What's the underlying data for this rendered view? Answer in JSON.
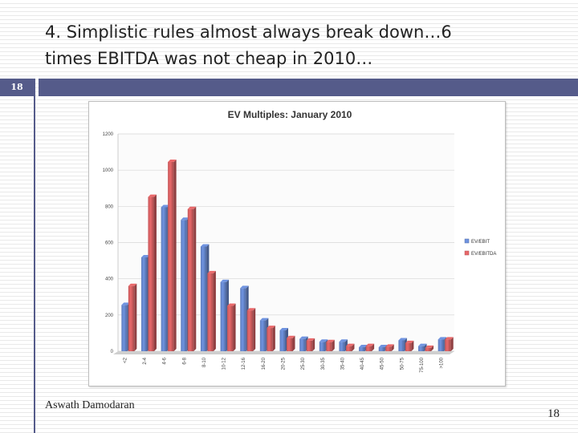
{
  "slide": {
    "title_line1": "4. Simplistic rules almost always break down…6",
    "title_line2": "times EBITDA was not cheap in 2010…",
    "slide_number_badge": "18",
    "page_number": "18",
    "author": "Aswath Damodaran",
    "accent_color": "#555b8a"
  },
  "chart_data": {
    "type": "bar",
    "title": "EV Multiples: January 2010",
    "xlabel": "",
    "ylabel": "",
    "ylim": [
      0,
      1200
    ],
    "yticks": [
      0,
      200,
      400,
      600,
      800,
      1000,
      1200
    ],
    "grid": true,
    "legend_position": "right",
    "categories": [
      "<2",
      "2-4",
      "4-6",
      "6-8",
      "8-10",
      "10-12",
      "12-16",
      "16-20",
      "20-25",
      "25-30",
      "30-35",
      "35-40",
      "40-45",
      "45-50",
      "50-75",
      "75-100",
      ">100"
    ],
    "series": [
      {
        "name": "EV/EBIT",
        "color": "#6f93e0",
        "values": [
          255,
          518,
          795,
          725,
          578,
          382,
          348,
          170,
          115,
          68,
          52,
          52,
          22,
          22,
          60,
          28,
          65
        ]
      },
      {
        "name": "EV/EBITDA",
        "color": "#e9686a",
        "values": [
          360,
          852,
          1045,
          785,
          430,
          250,
          225,
          128,
          72,
          58,
          50,
          28,
          28,
          25,
          45,
          18,
          65
        ]
      }
    ]
  }
}
